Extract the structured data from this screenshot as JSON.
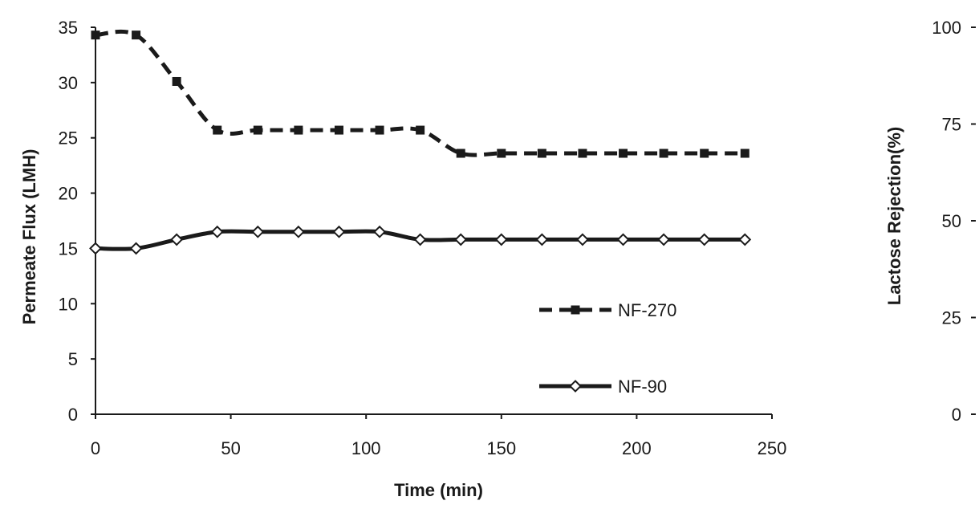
{
  "chart_data": {
    "type": "line",
    "xlabel": "Time (min)",
    "ylabel": "Permeate Flux (LMH)",
    "y2label": "Lactose Rejection(%)",
    "xlim": [
      0,
      250
    ],
    "ylim": [
      0,
      35
    ],
    "y2lim": [
      0,
      100
    ],
    "x_ticks": [
      "0",
      "50",
      "100",
      "150",
      "200",
      "250"
    ],
    "y_ticks": [
      "0",
      "5",
      "10",
      "15",
      "20",
      "25",
      "30",
      "35"
    ],
    "y2_ticks": [
      "0",
      "25",
      "50",
      "75",
      "100"
    ],
    "grid": false,
    "legend_position": "bottom-right",
    "series": [
      {
        "name": "NF-270",
        "style": "dashed",
        "marker": "square",
        "color": "#1a1a1a",
        "x": [
          0,
          15,
          30,
          45,
          60,
          75,
          90,
          105,
          120,
          135,
          150,
          165,
          180,
          195,
          210,
          225,
          240
        ],
        "y": [
          34.3,
          34.3,
          30.1,
          25.7,
          25.7,
          25.7,
          25.7,
          25.7,
          25.7,
          23.6,
          23.6,
          23.6,
          23.6,
          23.6,
          23.6,
          23.6,
          23.6
        ]
      },
      {
        "name": "NF-90",
        "style": "solid",
        "marker": "diamond",
        "color": "#1a1a1a",
        "x": [
          0,
          15,
          30,
          45,
          60,
          75,
          90,
          105,
          120,
          135,
          150,
          165,
          180,
          195,
          210,
          225,
          240
        ],
        "y": [
          15.0,
          15.0,
          15.8,
          16.5,
          16.5,
          16.5,
          16.5,
          16.5,
          15.8,
          15.8,
          15.8,
          15.8,
          15.8,
          15.8,
          15.8,
          15.8,
          15.8
        ]
      }
    ]
  }
}
